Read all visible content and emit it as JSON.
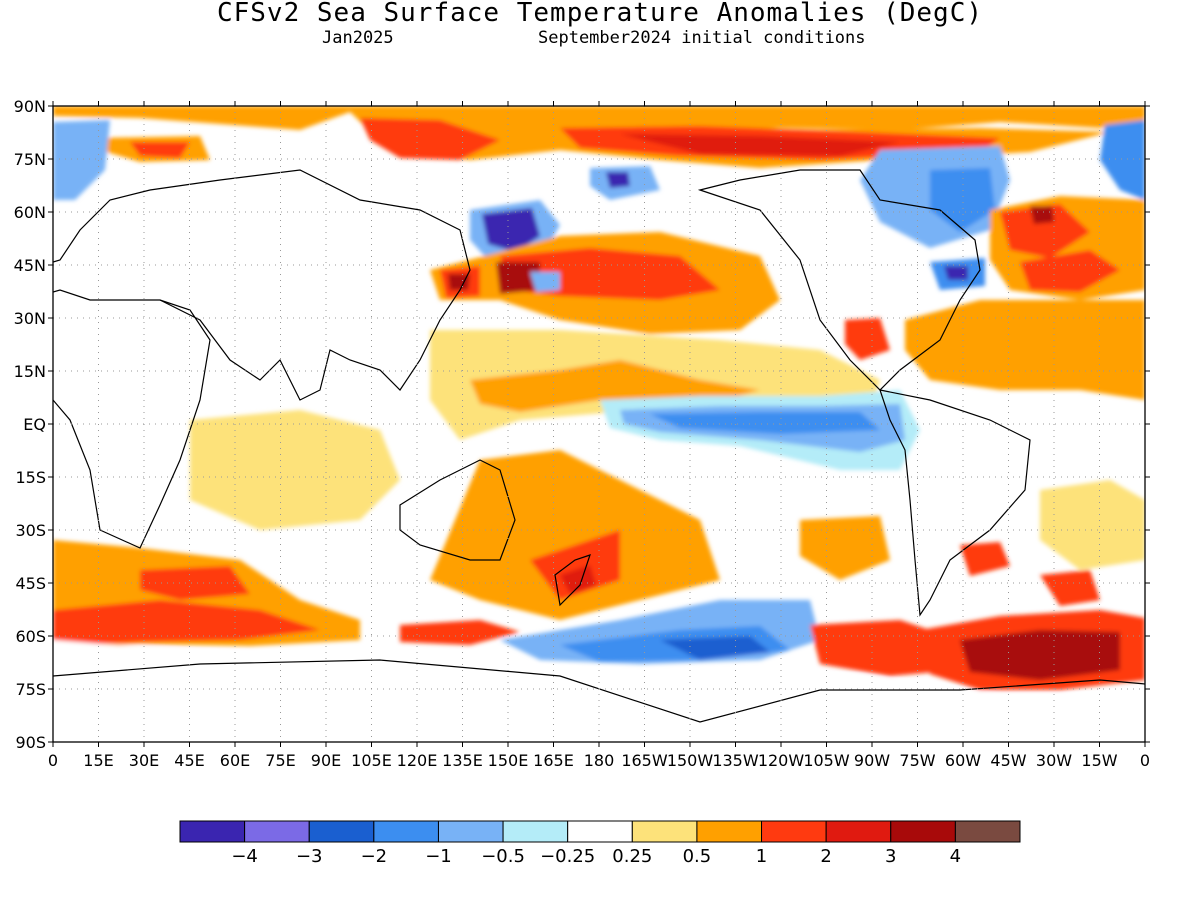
{
  "title": "CFSv2 Sea Surface Temperature Anomalies (DegC)",
  "valid_month": "Jan2025",
  "init_conditions": "September2024 initial conditions",
  "chart_data": {
    "type": "heatmap",
    "map_type": "global equirectangular filled-contour map",
    "lat_labels": [
      "90N",
      "75N",
      "60N",
      "45N",
      "30N",
      "15N",
      "EQ",
      "15S",
      "30S",
      "45S",
      "60S",
      "75S",
      "90S"
    ],
    "lon_labels": [
      "0",
      "15E",
      "30E",
      "45E",
      "60E",
      "75E",
      "90E",
      "105E",
      "120E",
      "135E",
      "150E",
      "165E",
      "180",
      "165W",
      "150W",
      "135W",
      "120W",
      "105W",
      "90W",
      "75W",
      "60W",
      "45W",
      "30W",
      "15W",
      "0"
    ],
    "lat_range": [
      -90,
      90
    ],
    "lon_range": [
      0,
      360
    ],
    "grid": "dotted",
    "colorbar": {
      "orientation": "horizontal",
      "placement": "bottom",
      "tick_labels": [
        "−4",
        "−3",
        "−2",
        "−1",
        "−0.5",
        "−0.25",
        "0.25",
        "0.5",
        "1",
        "2",
        "3",
        "4"
      ],
      "colors": [
        "#3a25b0",
        "#7b6ae6",
        "#1a5fd0",
        "#3c8ef0",
        "#78b2f6",
        "#b4ecf8",
        "#ffffff",
        "#fde27a",
        "#ffa000",
        "#ff3a10",
        "#e01a10",
        "#a80a0a",
        "#7a4a40"
      ]
    },
    "features": [
      {
        "region": "Arctic Ocean",
        "anomaly": 1.0
      },
      {
        "region": "North Pacific (central/western)",
        "anomaly": 1.0
      },
      {
        "region": "Kuroshio extension",
        "anomaly": 2.0
      },
      {
        "region": "Sea of Okhotsk",
        "anomaly": -4.0
      },
      {
        "region": "Eastern equatorial Pacific",
        "anomaly": -1.0
      },
      {
        "region": "Tropical North Atlantic",
        "anomaly": 0.5
      },
      {
        "region": "North Atlantic subpolar",
        "anomaly": 2.0
      },
      {
        "region": "Labrador Sea / Hudson Bay",
        "anomaly": -1.0
      },
      {
        "region": "Gulf of Mexico",
        "anomaly": 1.0
      },
      {
        "region": "Southern Ocean 0-60E",
        "anomaly": 1.0
      },
      {
        "region": "Tasman Sea / New Zealand",
        "anomaly": 2.0
      },
      {
        "region": "South Pacific 60S",
        "anomaly": -1.0
      },
      {
        "region": "Weddell sector 60S",
        "anomaly": 3.0
      }
    ]
  }
}
